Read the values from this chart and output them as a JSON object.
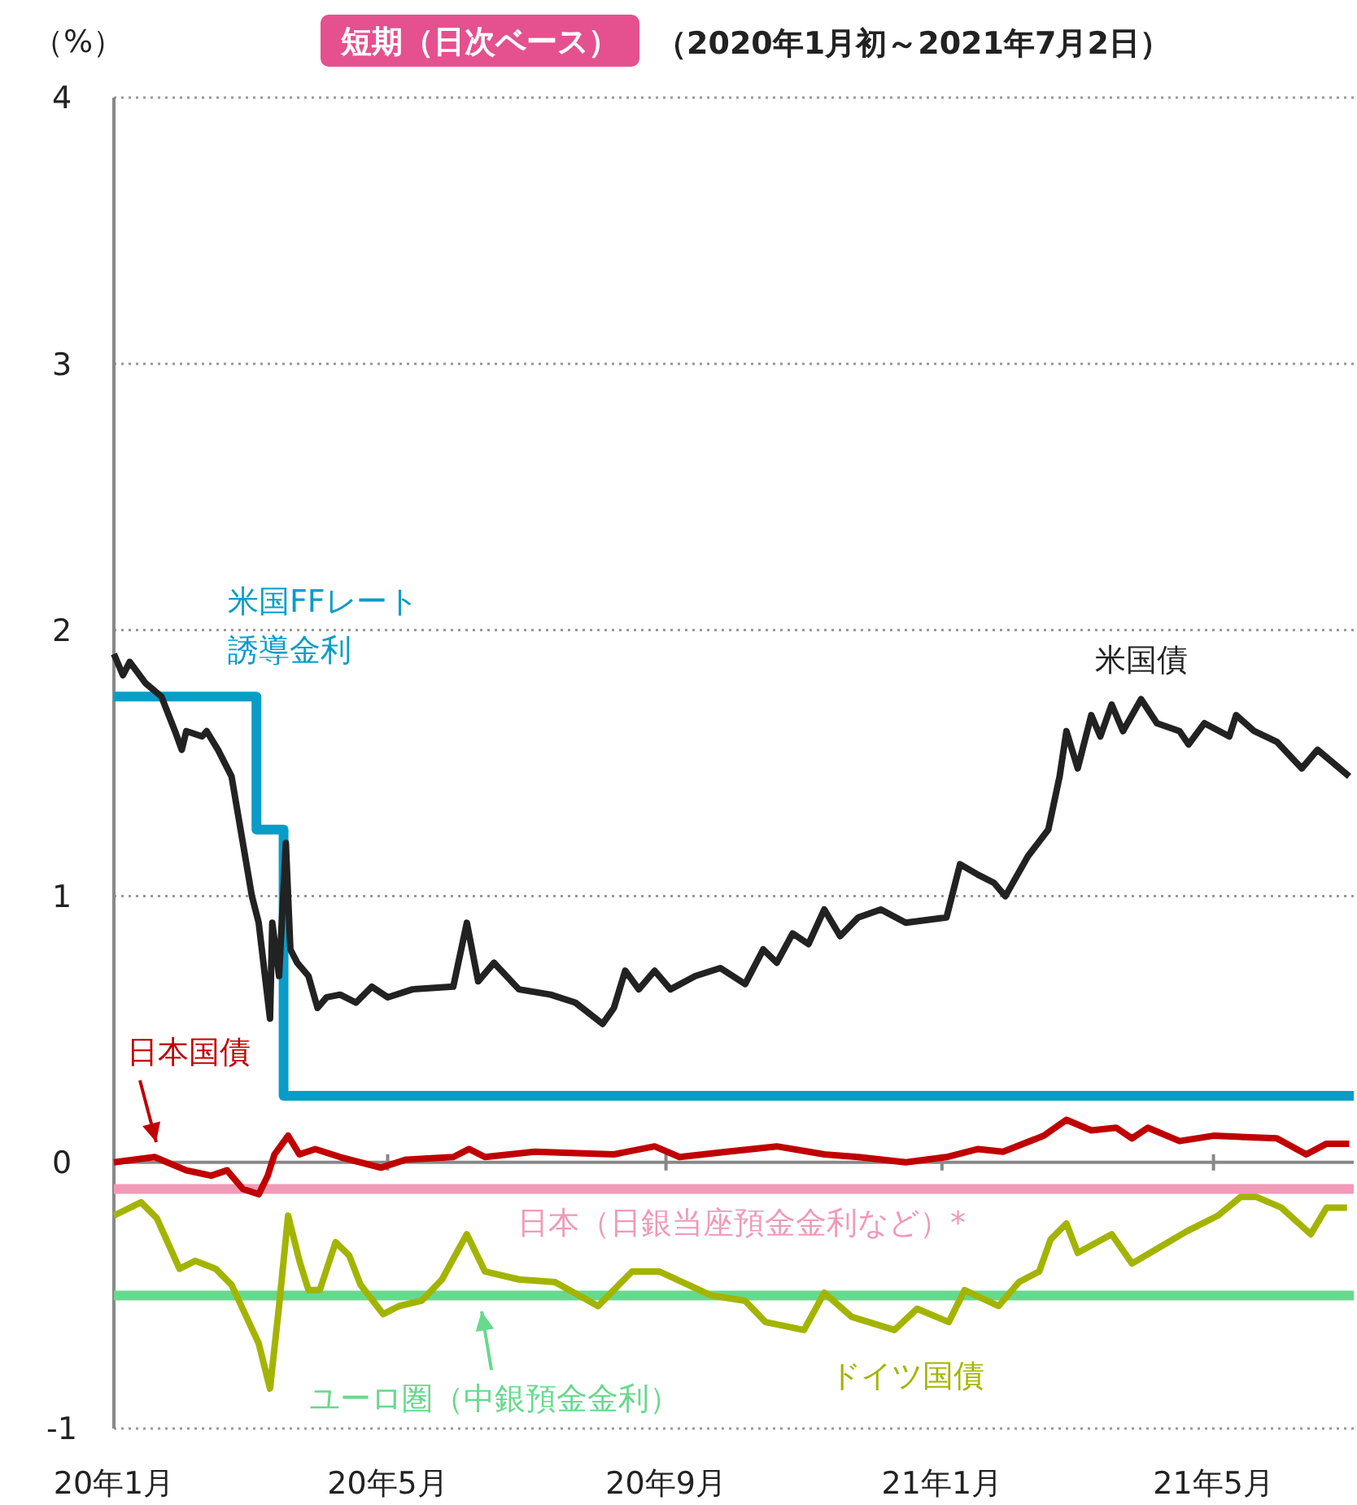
{
  "chart_data": {
    "type": "line",
    "title": "短期（日次ベース）",
    "subtitle": "（2020年1月初～2021年7月2日）",
    "ylabel": "（%）",
    "xlim": [
      "2020-01-01",
      "2021-07-02"
    ],
    "xticks": [
      {
        "value": "2020-01-01",
        "label": "20年1月"
      },
      {
        "value": "2020-05-01",
        "label": "20年5月"
      },
      {
        "value": "2020-09-01",
        "label": "20年9月"
      },
      {
        "value": "2021-01-01",
        "label": "21年1月"
      },
      {
        "value": "2021-05-01",
        "label": "21年5月"
      }
    ],
    "ylim": [
      -1,
      4
    ],
    "yticks": [
      -1,
      0,
      1,
      2,
      3,
      4
    ],
    "grid": "y",
    "series": [
      {
        "name": "米国FFレート誘導金利",
        "type": "step",
        "color": "#0a9cc8",
        "x": [
          "2020-01-01",
          "2020-03-04",
          "2020-03-16",
          "2021-07-02"
        ],
        "values": [
          1.75,
          1.25,
          0.25,
          0.25
        ]
      },
      {
        "name": "日本（日銀当座預金金利など）*",
        "color": "#f09ab8",
        "x": [
          "2020-01-01",
          "2021-07-02"
        ],
        "values": [
          -0.1,
          -0.1
        ]
      },
      {
        "name": "ユーロ圏（中銀預金金利）",
        "color": "#66d98c",
        "x": [
          "2020-01-01",
          "2021-07-02"
        ],
        "values": [
          -0.5,
          -0.5
        ]
      },
      {
        "name": "米国債",
        "color": "#222222",
        "x": [
          "2020-01-01",
          "2020-01-05",
          "2020-01-08",
          "2020-01-15",
          "2020-01-22",
          "2020-01-28",
          "2020-01-31",
          "2020-02-02",
          "2020-02-09",
          "2020-02-11",
          "2020-02-16",
          "2020-02-22",
          "2020-02-27",
          "2020-03-02",
          "2020-03-05",
          "2020-03-10",
          "2020-03-11",
          "2020-03-14",
          "2020-03-17",
          "2020-03-19",
          "2020-03-22",
          "2020-03-27",
          "2020-03-31",
          "2020-04-04",
          "2020-04-10",
          "2020-04-17",
          "2020-04-24",
          "2020-05-01",
          "2020-05-12",
          "2020-05-30",
          "2020-06-05",
          "2020-06-10",
          "2020-06-17",
          "2020-06-28",
          "2020-07-12",
          "2020-07-23",
          "2020-08-04",
          "2020-08-09",
          "2020-08-14",
          "2020-08-20",
          "2020-08-27",
          "2020-09-03",
          "2020-09-14",
          "2020-09-25",
          "2020-10-06",
          "2020-10-14",
          "2020-10-20",
          "2020-10-27",
          "2020-11-03",
          "2020-11-10",
          "2020-11-17",
          "2020-11-25",
          "2020-12-05",
          "2020-12-16",
          "2021-01-03",
          "2021-01-09",
          "2021-01-17",
          "2021-01-24",
          "2021-01-29",
          "2021-02-08",
          "2021-02-17",
          "2021-02-22",
          "2021-02-25",
          "2021-03-02",
          "2021-03-08",
          "2021-03-12",
          "2021-03-17",
          "2021-03-22",
          "2021-03-30",
          "2021-04-06",
          "2021-04-16",
          "2021-04-20",
          "2021-04-27",
          "2021-05-08",
          "2021-05-11",
          "2021-05-19",
          "2021-05-29",
          "2021-06-09",
          "2021-06-16",
          "2021-06-30"
        ],
        "values": [
          1.91,
          1.83,
          1.88,
          1.8,
          1.75,
          1.62,
          1.55,
          1.62,
          1.6,
          1.62,
          1.55,
          1.45,
          1.2,
          1.0,
          0.9,
          0.54,
          0.9,
          0.7,
          1.2,
          0.8,
          0.75,
          0.7,
          0.58,
          0.62,
          0.63,
          0.6,
          0.66,
          0.62,
          0.65,
          0.66,
          0.9,
          0.68,
          0.75,
          0.65,
          0.63,
          0.6,
          0.52,
          0.58,
          0.72,
          0.65,
          0.72,
          0.65,
          0.7,
          0.73,
          0.67,
          0.8,
          0.75,
          0.86,
          0.82,
          0.95,
          0.85,
          0.92,
          0.95,
          0.9,
          0.92,
          1.12,
          1.08,
          1.05,
          1.0,
          1.15,
          1.25,
          1.45,
          1.62,
          1.48,
          1.68,
          1.6,
          1.72,
          1.62,
          1.74,
          1.65,
          1.62,
          1.57,
          1.65,
          1.6,
          1.68,
          1.62,
          1.58,
          1.48,
          1.55,
          1.45
        ]
      },
      {
        "name": "日本国債",
        "color": "#c00000",
        "x": [
          "2020-01-01",
          "2020-01-19",
          "2020-02-02",
          "2020-02-13",
          "2020-02-20",
          "2020-02-27",
          "2020-03-05",
          "2020-03-09",
          "2020-03-12",
          "2020-03-18",
          "2020-03-23",
          "2020-03-30",
          "2020-04-10",
          "2020-04-28",
          "2020-05-09",
          "2020-05-30",
          "2020-06-06",
          "2020-06-13",
          "2020-07-05",
          "2020-08-09",
          "2020-08-27",
          "2020-09-07",
          "2020-09-28",
          "2020-10-20",
          "2020-11-10",
          "2020-11-25",
          "2020-12-16",
          "2021-01-03",
          "2021-01-17",
          "2021-01-28",
          "2021-02-15",
          "2021-02-25",
          "2021-03-08",
          "2021-03-19",
          "2021-03-26",
          "2021-04-02",
          "2021-04-16",
          "2021-05-01",
          "2021-05-29",
          "2021-06-11",
          "2021-06-20",
          "2021-06-30"
        ],
        "values": [
          0.0,
          0.02,
          -0.03,
          -0.05,
          -0.03,
          -0.1,
          -0.12,
          -0.05,
          0.03,
          0.1,
          0.03,
          0.05,
          0.02,
          -0.02,
          0.01,
          0.02,
          0.05,
          0.02,
          0.04,
          0.03,
          0.06,
          0.02,
          0.04,
          0.06,
          0.03,
          0.02,
          0.0,
          0.02,
          0.05,
          0.04,
          0.1,
          0.16,
          0.12,
          0.13,
          0.09,
          0.13,
          0.08,
          0.1,
          0.09,
          0.03,
          0.07,
          0.07
        ]
      },
      {
        "name": "ドイツ国債",
        "color": "#a3b400",
        "x": [
          "2020-01-01",
          "2020-01-13",
          "2020-01-20",
          "2020-01-30",
          "2020-02-06",
          "2020-02-15",
          "2020-02-22",
          "2020-03-05",
          "2020-03-10",
          "2020-03-14",
          "2020-03-18",
          "2020-03-23",
          "2020-03-27",
          "2020-04-01",
          "2020-04-08",
          "2020-04-14",
          "2020-04-19",
          "2020-04-29",
          "2020-05-06",
          "2020-05-16",
          "2020-05-25",
          "2020-06-05",
          "2020-06-13",
          "2020-06-28",
          "2020-07-14",
          "2020-08-02",
          "2020-08-17",
          "2020-08-29",
          "2020-09-21",
          "2020-10-06",
          "2020-10-15",
          "2020-11-01",
          "2020-11-10",
          "2020-11-22",
          "2020-12-11",
          "2020-12-21",
          "2021-01-04",
          "2021-01-11",
          "2021-01-26",
          "2021-02-04",
          "2021-02-13",
          "2021-02-18",
          "2021-02-25",
          "2021-03-02",
          "2021-03-17",
          "2021-03-26",
          "2021-04-07",
          "2021-04-19",
          "2021-05-03",
          "2021-05-13",
          "2021-05-20",
          "2021-05-31",
          "2021-06-13",
          "2021-06-20",
          "2021-06-29"
        ],
        "values": [
          -0.2,
          -0.15,
          -0.21,
          -0.4,
          -0.37,
          -0.4,
          -0.46,
          -0.68,
          -0.85,
          -0.54,
          -0.2,
          -0.37,
          -0.48,
          -0.48,
          -0.3,
          -0.35,
          -0.46,
          -0.57,
          -0.54,
          -0.52,
          -0.44,
          -0.27,
          -0.41,
          -0.44,
          -0.45,
          -0.54,
          -0.41,
          -0.41,
          -0.5,
          -0.52,
          -0.6,
          -0.63,
          -0.49,
          -0.58,
          -0.63,
          -0.55,
          -0.6,
          -0.48,
          -0.54,
          -0.45,
          -0.41,
          -0.29,
          -0.23,
          -0.34,
          -0.27,
          -0.38,
          -0.32,
          -0.26,
          -0.2,
          -0.13,
          -0.13,
          -0.17,
          -0.27,
          -0.17,
          -0.17
        ]
      }
    ]
  }
}
